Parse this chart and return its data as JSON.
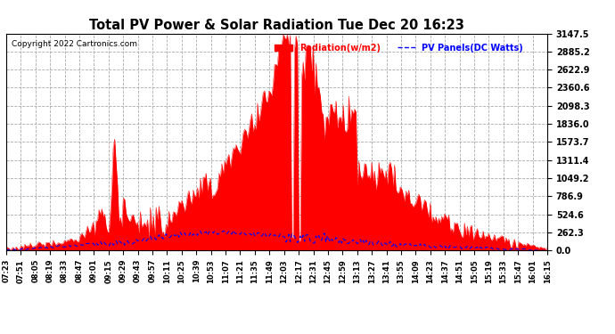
{
  "title": "Total PV Power & Solar Radiation Tue Dec 20 16:23",
  "copyright": "Copyright 2022 Cartronics.com",
  "legend_radiation": "Radiation(w/m2)",
  "legend_pv": "PV Panels(DC Watts)",
  "y_max": 3147.5,
  "y_min": 0.0,
  "y_ticks": [
    0.0,
    262.3,
    524.6,
    786.9,
    1049.2,
    1311.4,
    1573.7,
    1836.0,
    2098.3,
    2360.6,
    2622.9,
    2885.2,
    3147.5
  ],
  "background_color": "#ffffff",
  "plot_bg_color": "#ffffff",
  "grid_color": "#aaaaaa",
  "radiation_color": "#ff0000",
  "pv_color": "#0000ff",
  "title_color": "#000000",
  "copyright_color": "#000000",
  "x_tick_labels": [
    "07:23",
    "07:51",
    "08:05",
    "08:19",
    "08:33",
    "08:47",
    "09:01",
    "09:15",
    "09:29",
    "09:43",
    "09:57",
    "10:11",
    "10:25",
    "10:39",
    "10:53",
    "11:07",
    "11:21",
    "11:35",
    "11:49",
    "12:03",
    "12:17",
    "12:31",
    "12:45",
    "12:59",
    "13:13",
    "13:27",
    "13:41",
    "13:55",
    "14:09",
    "14:23",
    "14:37",
    "14:51",
    "15:05",
    "15:19",
    "15:33",
    "15:47",
    "16:01",
    "16:15"
  ]
}
